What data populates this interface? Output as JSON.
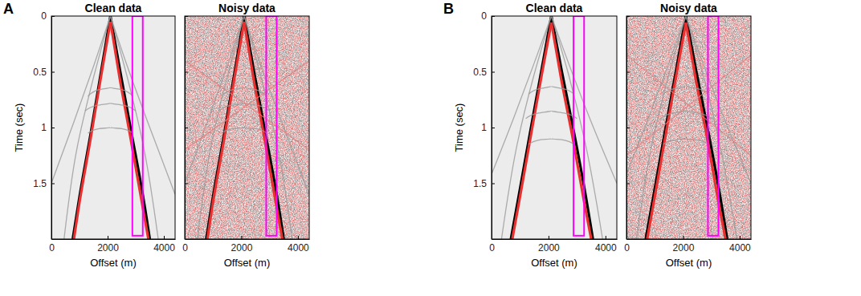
{
  "chart_data": [
    {
      "type": "gather",
      "panel": "A",
      "title": "Clean data",
      "xlabel": "Offset (m)",
      "ylabel": "Time (sec)",
      "xlim": [
        0,
        4400
      ],
      "ylim": [
        0,
        2
      ],
      "xticks": [
        0,
        2000,
        4000
      ],
      "yticks": [
        0,
        0.5,
        1,
        1.5
      ],
      "box": {
        "x": [
          2880,
          3250
        ],
        "y": [
          0,
          1.97
        ],
        "color": "#ff00ff"
      },
      "series": [
        {
          "color": "#000000",
          "line_style": "bold",
          "x": [
            2100,
            1800,
            1400,
            1000,
            760
          ],
          "values": [
            0,
            0.45,
            1.05,
            1.62,
            2.0
          ]
        },
        {
          "color": "#000000",
          "line_style": "bold",
          "x": [
            2100,
            2450,
            2850,
            3250,
            3500
          ],
          "values": [
            0,
            0.5,
            1.05,
            1.6,
            2.0
          ]
        },
        {
          "color": "#e83030",
          "line_style": "bold",
          "x": [
            2100,
            1780,
            1380,
            980,
            800
          ],
          "values": [
            0.05,
            0.52,
            1.12,
            1.7,
            2.0
          ]
        },
        {
          "color": "#e83030",
          "line_style": "bold",
          "x": [
            2100,
            2430,
            2820,
            3210,
            3450
          ],
          "values": [
            0.05,
            0.56,
            1.1,
            1.66,
            2.0
          ]
        },
        {
          "color": "#9a9a9a",
          "line_style": "thin",
          "x": [
            2100,
            1500,
            800,
            0
          ],
          "values": [
            0,
            0.45,
            0.95,
            1.5
          ]
        },
        {
          "color": "#9a9a9a",
          "line_style": "thin",
          "x": [
            2100,
            2700,
            3500,
            4400
          ],
          "values": [
            0,
            0.45,
            1.0,
            1.6
          ]
        },
        {
          "color": "#9a9a9a",
          "line_style": "thin",
          "x": [
            2100,
            1500,
            900,
            450
          ],
          "values": [
            0,
            0.55,
            1.2,
            2.0
          ]
        },
        {
          "color": "#9a9a9a",
          "line_style": "thin",
          "x": [
            2100,
            2700,
            3300,
            3800
          ],
          "values": [
            0,
            0.55,
            1.2,
            2.0
          ]
        },
        {
          "color": "#9a9a9a",
          "line_style": "thin",
          "x": [
            1300,
            1700,
            2100,
            2500,
            2900
          ],
          "values": [
            0.72,
            0.66,
            0.64,
            0.66,
            0.72
          ]
        },
        {
          "color": "#9a9a9a",
          "line_style": "thin",
          "x": [
            1200,
            1650,
            2100,
            2550,
            3000
          ],
          "values": [
            0.85,
            0.8,
            0.78,
            0.8,
            0.85
          ]
        },
        {
          "color": "#9a9a9a",
          "line_style": "thin",
          "x": [
            1300,
            1700,
            2100,
            2500,
            2900
          ],
          "values": [
            1.05,
            1.01,
            1.0,
            1.01,
            1.05
          ]
        }
      ]
    },
    {
      "type": "noise",
      "title": "Noisy data",
      "xlabel": "Offset (m)",
      "tick_labels": "x",
      "xlim": [
        0,
        4400
      ],
      "ylim": [
        0,
        2
      ],
      "xticks": [
        0,
        2000,
        4000
      ],
      "yticks": [
        0,
        0.5,
        1,
        1.5
      ],
      "box": {
        "x": [
          2880,
          3250
        ],
        "y": [
          0,
          1.97
        ],
        "color": "#ff00ff"
      },
      "series": [
        {
          "color": "#000000",
          "line_style": "bold",
          "x": [
            2100,
            1800,
            1400,
            1000,
            760
          ],
          "values": [
            0,
            0.45,
            1.05,
            1.62,
            2.0
          ]
        },
        {
          "color": "#000000",
          "line_style": "bold",
          "x": [
            2100,
            2450,
            2850,
            3250,
            3500
          ],
          "values": [
            0,
            0.5,
            1.05,
            1.6,
            2.0
          ]
        },
        {
          "color": "#e83030",
          "line_style": "bold",
          "x": [
            2100,
            1780,
            1380,
            980,
            800
          ],
          "values": [
            0.05,
            0.52,
            1.12,
            1.7,
            2.0
          ]
        },
        {
          "color": "#e83030",
          "line_style": "bold",
          "x": [
            2100,
            2430,
            2820,
            3210,
            3450
          ],
          "values": [
            0.05,
            0.56,
            1.1,
            1.66,
            2.0
          ]
        },
        {
          "color": "#9a9a9a",
          "line_style": "thin",
          "x": [
            2100,
            1500,
            800,
            0
          ],
          "values": [
            0,
            0.45,
            0.95,
            1.5
          ]
        },
        {
          "color": "#9a9a9a",
          "line_style": "thin",
          "x": [
            2100,
            2700,
            3500,
            4400
          ],
          "values": [
            0,
            0.45,
            1.0,
            1.6
          ]
        },
        {
          "color": "#9a9a9a",
          "line_style": "thin",
          "x": [
            2100,
            1500,
            900,
            450
          ],
          "values": [
            0,
            0.55,
            1.2,
            2.0
          ]
        },
        {
          "color": "#9a9a9a",
          "line_style": "thin",
          "x": [
            2100,
            2700,
            3300,
            3800
          ],
          "values": [
            0,
            0.55,
            1.2,
            2.0
          ]
        },
        {
          "color": "#9a9a9a",
          "line_style": "thin",
          "x": [
            1300,
            1700,
            2100,
            2500,
            2900
          ],
          "values": [
            0.72,
            0.66,
            0.64,
            0.66,
            0.72
          ]
        },
        {
          "color": "#9a9a9a",
          "line_style": "thin",
          "x": [
            1200,
            1650,
            2100,
            2550,
            3000
          ],
          "values": [
            0.85,
            0.8,
            0.78,
            0.8,
            0.85
          ]
        },
        {
          "color": "#9a9a9a",
          "line_style": "thin",
          "x": [
            1300,
            1700,
            2100,
            2500,
            2900
          ],
          "values": [
            1.05,
            1.01,
            1.0,
            1.01,
            1.05
          ]
        },
        {
          "color": "#e08080",
          "line_style": "thin",
          "x": [
            0,
            4400
          ],
          "values": [
            0.4,
            1.2
          ]
        },
        {
          "color": "#e08080",
          "line_style": "thin",
          "x": [
            0,
            4400
          ],
          "values": [
            1.2,
            0.4
          ]
        }
      ]
    },
    {
      "type": "gather",
      "panel": "B",
      "title": "Clean data",
      "xlabel": "Offset (m)",
      "ylabel": "Time (sec)",
      "xlim": [
        0,
        4400
      ],
      "ylim": [
        0,
        2
      ],
      "xticks": [
        0,
        2000,
        4000
      ],
      "yticks": [
        0,
        0.5,
        1,
        1.5
      ],
      "box": {
        "x": [
          2880,
          3250
        ],
        "y": [
          0,
          1.97
        ],
        "color": "#ff00ff"
      },
      "series": [
        {
          "color": "#000000",
          "line_style": "bold",
          "x": [
            2100,
            1780,
            1350,
            950,
            680
          ],
          "values": [
            0,
            0.45,
            1.05,
            1.62,
            2.0
          ]
        },
        {
          "color": "#000000",
          "line_style": "bold",
          "x": [
            2100,
            2470,
            2900,
            3300,
            3560
          ],
          "values": [
            0,
            0.5,
            1.05,
            1.6,
            2.0
          ]
        },
        {
          "color": "#e83030",
          "line_style": "bold",
          "x": [
            2100,
            1760,
            1340,
            930,
            730
          ],
          "values": [
            0.06,
            0.53,
            1.13,
            1.72,
            2.0
          ]
        },
        {
          "color": "#e83030",
          "line_style": "bold",
          "x": [
            2100,
            2450,
            2870,
            3260,
            3500
          ],
          "values": [
            0.06,
            0.57,
            1.12,
            1.68,
            2.0
          ]
        },
        {
          "color": "#9a9a9a",
          "line_style": "thin",
          "x": [
            2100,
            1500,
            800,
            0
          ],
          "values": [
            0,
            0.42,
            0.9,
            1.42
          ]
        },
        {
          "color": "#9a9a9a",
          "line_style": "thin",
          "x": [
            2100,
            2700,
            3500,
            4400
          ],
          "values": [
            0,
            0.42,
            0.95,
            1.5
          ]
        },
        {
          "color": "#9a9a9a",
          "line_style": "thin",
          "x": [
            2100,
            1500,
            900,
            350
          ],
          "values": [
            0,
            0.52,
            1.15,
            2.0
          ]
        },
        {
          "color": "#9a9a9a",
          "line_style": "thin",
          "x": [
            2100,
            2700,
            3300,
            3900
          ],
          "values": [
            0,
            0.52,
            1.15,
            2.0
          ]
        },
        {
          "color": "#9a9a9a",
          "line_style": "thin",
          "x": [
            1300,
            1700,
            2100,
            2500,
            2900
          ],
          "values": [
            0.7,
            0.65,
            0.63,
            0.65,
            0.7
          ]
        },
        {
          "color": "#9a9a9a",
          "line_style": "thin",
          "x": [
            1200,
            1650,
            2100,
            2550,
            3000
          ],
          "values": [
            0.92,
            0.87,
            0.85,
            0.87,
            0.92
          ]
        },
        {
          "color": "#9a9a9a",
          "line_style": "thin",
          "x": [
            1300,
            1700,
            2100,
            2500,
            2900
          ],
          "values": [
            1.15,
            1.11,
            1.1,
            1.11,
            1.15
          ]
        }
      ]
    },
    {
      "type": "noise",
      "title": "Noisy data",
      "xlabel": "Offset (m)",
      "tick_labels": "x",
      "xlim": [
        0,
        4400
      ],
      "ylim": [
        0,
        2
      ],
      "xticks": [
        0,
        2000,
        4000
      ],
      "yticks": [
        0,
        0.5,
        1,
        1.5
      ],
      "box": {
        "x": [
          2880,
          3250
        ],
        "y": [
          0,
          1.97
        ],
        "color": "#ff00ff"
      },
      "series": [
        {
          "color": "#000000",
          "line_style": "bold",
          "x": [
            2100,
            1780,
            1350,
            950,
            680
          ],
          "values": [
            0,
            0.45,
            1.05,
            1.62,
            2.0
          ]
        },
        {
          "color": "#000000",
          "line_style": "bold",
          "x": [
            2100,
            2470,
            2900,
            3300,
            3560
          ],
          "values": [
            0,
            0.5,
            1.05,
            1.6,
            2.0
          ]
        },
        {
          "color": "#e83030",
          "line_style": "bold",
          "x": [
            2100,
            1760,
            1340,
            930,
            730
          ],
          "values": [
            0.06,
            0.53,
            1.13,
            1.72,
            2.0
          ]
        },
        {
          "color": "#e83030",
          "line_style": "bold",
          "x": [
            2100,
            2450,
            2870,
            3260,
            3500
          ],
          "values": [
            0.06,
            0.57,
            1.12,
            1.68,
            2.0
          ]
        },
        {
          "color": "#9a9a9a",
          "line_style": "thin",
          "x": [
            2100,
            1500,
            800,
            0
          ],
          "values": [
            0,
            0.42,
            0.9,
            1.42
          ]
        },
        {
          "color": "#9a9a9a",
          "line_style": "thin",
          "x": [
            2100,
            2700,
            3500,
            4400
          ],
          "values": [
            0,
            0.42,
            0.95,
            1.5
          ]
        },
        {
          "color": "#9a9a9a",
          "line_style": "thin",
          "x": [
            2100,
            1500,
            900,
            350
          ],
          "values": [
            0,
            0.52,
            1.15,
            2.0
          ]
        },
        {
          "color": "#9a9a9a",
          "line_style": "thin",
          "x": [
            2100,
            2700,
            3300,
            3900
          ],
          "values": [
            0,
            0.52,
            1.15,
            2.0
          ]
        },
        {
          "color": "#9a9a9a",
          "line_style": "thin",
          "x": [
            1300,
            1700,
            2100,
            2500,
            2900
          ],
          "values": [
            0.7,
            0.65,
            0.63,
            0.65,
            0.7
          ]
        },
        {
          "color": "#9a9a9a",
          "line_style": "thin",
          "x": [
            1200,
            1650,
            2100,
            2550,
            3000
          ],
          "values": [
            0.92,
            0.87,
            0.85,
            0.87,
            0.92
          ]
        },
        {
          "color": "#9a9a9a",
          "line_style": "thin",
          "x": [
            1300,
            1700,
            2100,
            2500,
            2900
          ],
          "values": [
            1.15,
            1.11,
            1.1,
            1.11,
            1.15
          ]
        },
        {
          "color": "#e08080",
          "line_style": "thin",
          "x": [
            0,
            4400
          ],
          "values": [
            0.35,
            1.25
          ]
        },
        {
          "color": "#e08080",
          "line_style": "thin",
          "x": [
            0,
            4400
          ],
          "values": [
            1.25,
            0.35
          ]
        }
      ]
    }
  ]
}
